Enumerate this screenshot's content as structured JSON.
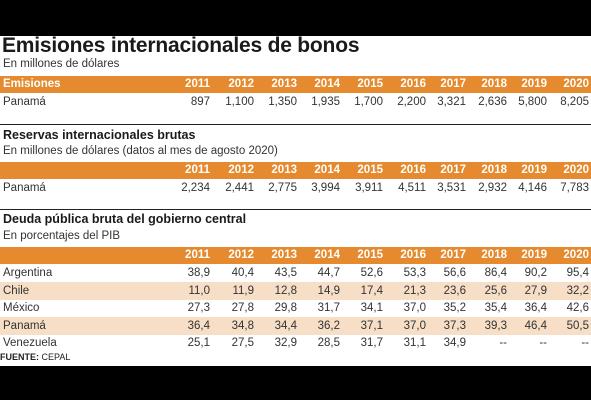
{
  "title": "Emisiones internacionales de bonos",
  "colors": {
    "header_bg": "#e58a2e",
    "alt_row_bg": "#f6dfc6",
    "header_text": "#ffffff"
  },
  "years": [
    "2011",
    "2012",
    "2013",
    "2014",
    "2015",
    "2016",
    "2017",
    "2018",
    "2019",
    "2020"
  ],
  "source": {
    "label": "FUENTE:",
    "value": "CEPAL"
  },
  "chart_data": [
    {
      "type": "table",
      "title": "",
      "subtitle": "En millones de dólares",
      "header_label": "Emisiones",
      "columns": [
        "2011",
        "2012",
        "2013",
        "2014",
        "2015",
        "2016",
        "2017",
        "2018",
        "2019",
        "2020"
      ],
      "rows": [
        {
          "label": "Panamá",
          "values": [
            "897",
            "1,100",
            "1,350",
            "1,935",
            "1,700",
            "2,200",
            "3,321",
            "2,636",
            "5,800",
            "8,205"
          ]
        }
      ]
    },
    {
      "type": "table",
      "title": "Reservas internacionales brutas",
      "subtitle": "En millones de dólares (datos al mes de agosto 2020)",
      "header_label": "",
      "columns": [
        "2011",
        "2012",
        "2013",
        "2014",
        "2015",
        "2016",
        "2017",
        "2018",
        "2019",
        "2020"
      ],
      "rows": [
        {
          "label": "Panamá",
          "values": [
            "2,234",
            "2,441",
            "2,775",
            "3,994",
            "3,911",
            "4,511",
            "3,531",
            "2,932",
            "4,146",
            "7,783"
          ]
        }
      ]
    },
    {
      "type": "table",
      "title": "Deuda pública bruta del gobierno central",
      "subtitle": "En porcentajes del PIB",
      "header_label": "",
      "columns": [
        "2011",
        "2012",
        "2013",
        "2014",
        "2015",
        "2016",
        "2017",
        "2018",
        "2019",
        "2020"
      ],
      "rows": [
        {
          "label": "Argentina",
          "values": [
            "38,9",
            "40,4",
            "43,5",
            "44,7",
            "52,6",
            "53,3",
            "56,6",
            "86,4",
            "90,2",
            "95,4"
          ]
        },
        {
          "label": "Chile",
          "values": [
            "11,0",
            "11,9",
            "12,8",
            "14,9",
            "17,4",
            "21,3",
            "23,6",
            "25,6",
            "27,9",
            "32,2"
          ]
        },
        {
          "label": "México",
          "values": [
            "27,3",
            "27,8",
            "29,8",
            "31,7",
            "34,1",
            "37,0",
            "35,2",
            "35,4",
            "36,4",
            "42,6"
          ]
        },
        {
          "label": "Panamá",
          "values": [
            "36,4",
            "34,8",
            "34,4",
            "36,2",
            "37,1",
            "37,0",
            "37,3",
            "39,3",
            "46,4",
            "50,5"
          ]
        },
        {
          "label": "Venezuela",
          "values": [
            "25,1",
            "27,5",
            "32,9",
            "28,5",
            "31,7",
            "31,1",
            "34,9",
            "--",
            "--",
            "--"
          ]
        }
      ]
    }
  ]
}
